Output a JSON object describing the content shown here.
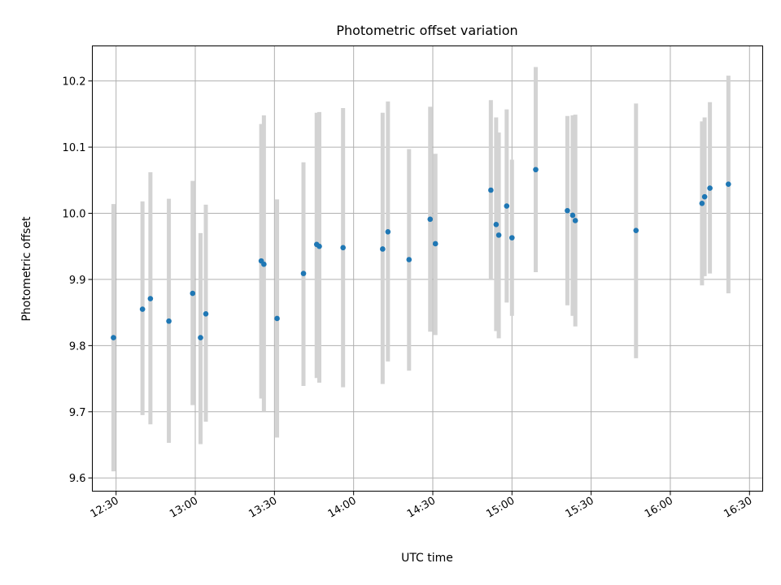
{
  "chart_data": {
    "type": "scatter",
    "title": "Photometric offset variation",
    "xlabel": "UTC time",
    "ylabel": "Photometric offset",
    "xlim": [
      "12:21",
      "16:35"
    ],
    "ylim": [
      9.58,
      10.253
    ],
    "grid": true,
    "x_ticks": [
      "12:30",
      "13:00",
      "13:30",
      "14:00",
      "14:30",
      "15:00",
      "15:30",
      "16:00",
      "16:30"
    ],
    "y_ticks": [
      "9.6",
      "9.7",
      "9.8",
      "9.9",
      "10.0",
      "10.1",
      "10.2"
    ],
    "colors": {
      "point": "#1f77b4",
      "errorbar": "#d3d3d3",
      "grid": "#b0b0b0"
    },
    "points": [
      {
        "x": "12:29",
        "y": 9.812,
        "err": [
          9.61,
          10.014
        ]
      },
      {
        "x": "12:40",
        "y": 9.855,
        "err": [
          9.695,
          10.018
        ]
      },
      {
        "x": "12:43",
        "y": 9.871,
        "err": [
          9.681,
          10.062
        ]
      },
      {
        "x": "12:50",
        "y": 9.837,
        "err": [
          9.653,
          10.022
        ]
      },
      {
        "x": "12:59",
        "y": 9.879,
        "err": [
          9.71,
          10.049
        ]
      },
      {
        "x": "13:02",
        "y": 9.812,
        "err": [
          9.651,
          9.97
        ]
      },
      {
        "x": "13:04",
        "y": 9.848,
        "err": [
          9.685,
          10.013
        ]
      },
      {
        "x": "13:25",
        "y": 9.928,
        "err": [
          9.72,
          10.135
        ]
      },
      {
        "x": "13:26",
        "y": 9.923,
        "err": [
          9.7,
          10.148
        ]
      },
      {
        "x": "13:31",
        "y": 9.841,
        "err": [
          9.661,
          10.021
        ]
      },
      {
        "x": "13:41",
        "y": 9.909,
        "err": [
          9.739,
          10.077
        ]
      },
      {
        "x": "13:46",
        "y": 9.953,
        "err": [
          9.751,
          10.152
        ]
      },
      {
        "x": "13:47",
        "y": 9.95,
        "err": [
          9.744,
          10.153
        ]
      },
      {
        "x": "13:56",
        "y": 9.948,
        "err": [
          9.737,
          10.159
        ]
      },
      {
        "x": "14:11",
        "y": 9.946,
        "err": [
          9.742,
          10.152
        ]
      },
      {
        "x": "14:13",
        "y": 9.972,
        "err": [
          9.776,
          10.169
        ]
      },
      {
        "x": "14:21",
        "y": 9.93,
        "err": [
          9.762,
          10.097
        ]
      },
      {
        "x": "14:29",
        "y": 9.991,
        "err": [
          9.821,
          10.161
        ]
      },
      {
        "x": "14:31",
        "y": 9.954,
        "err": [
          9.816,
          10.09
        ]
      },
      {
        "x": "14:52",
        "y": 10.035,
        "err": [
          9.899,
          10.171
        ]
      },
      {
        "x": "14:54",
        "y": 9.983,
        "err": [
          9.822,
          10.145
        ]
      },
      {
        "x": "14:55",
        "y": 9.967,
        "err": [
          9.811,
          10.122
        ]
      },
      {
        "x": "14:58",
        "y": 10.011,
        "err": [
          9.865,
          10.157
        ]
      },
      {
        "x": "15:00",
        "y": 9.963,
        "err": [
          9.845,
          10.081
        ]
      },
      {
        "x": "15:09",
        "y": 10.066,
        "err": [
          9.911,
          10.221
        ]
      },
      {
        "x": "15:21",
        "y": 10.004,
        "err": [
          9.861,
          10.147
        ]
      },
      {
        "x": "15:23",
        "y": 9.997,
        "err": [
          9.845,
          10.148
        ]
      },
      {
        "x": "15:24",
        "y": 9.989,
        "err": [
          9.829,
          10.149
        ]
      },
      {
        "x": "15:47",
        "y": 9.974,
        "err": [
          9.781,
          10.166
        ]
      },
      {
        "x": "16:12",
        "y": 10.015,
        "err": [
          9.891,
          10.139
        ]
      },
      {
        "x": "16:13",
        "y": 10.025,
        "err": [
          9.905,
          10.145
        ]
      },
      {
        "x": "16:15",
        "y": 10.038,
        "err": [
          9.909,
          10.168
        ]
      },
      {
        "x": "16:22",
        "y": 10.044,
        "err": [
          9.879,
          10.208
        ]
      }
    ]
  }
}
